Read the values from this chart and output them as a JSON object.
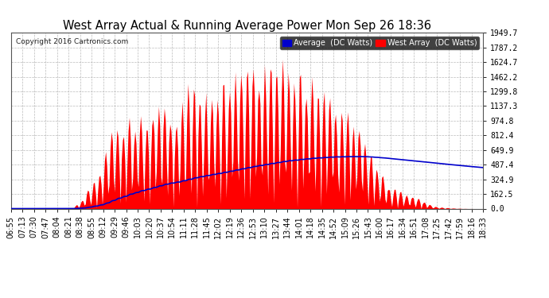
{
  "title": "West Array Actual & Running Average Power Mon Sep 26 18:36",
  "copyright": "Copyright 2016 Cartronics.com",
  "legend_avg": "Average  (DC Watts)",
  "legend_west": "West Array  (DC Watts)",
  "ylabel_values": [
    0.0,
    162.5,
    324.9,
    487.4,
    649.9,
    812.4,
    974.8,
    1137.3,
    1299.8,
    1462.2,
    1624.7,
    1787.2,
    1949.7
  ],
  "ymax": 1949.7,
  "background_color": "#ffffff",
  "plot_bg_color": "#ffffff",
  "grid_color": "#aaaaaa",
  "west_array_color": "#ff0000",
  "average_color": "#0000cc",
  "title_color": "#000000",
  "tick_label_color": "#000000",
  "x_tick_labels": [
    "06:55",
    "07:13",
    "07:30",
    "07:47",
    "08:04",
    "08:21",
    "08:38",
    "08:55",
    "09:12",
    "09:29",
    "09:46",
    "10:03",
    "10:20",
    "10:37",
    "10:54",
    "11:11",
    "11:28",
    "11:45",
    "12:02",
    "12:19",
    "12:36",
    "12:53",
    "13:10",
    "13:27",
    "13:44",
    "14:01",
    "14:18",
    "14:35",
    "14:52",
    "15:09",
    "15:26",
    "15:43",
    "16:00",
    "16:17",
    "16:34",
    "16:51",
    "17:08",
    "17:25",
    "17:42",
    "17:59",
    "18:16",
    "18:33"
  ],
  "num_points": 420
}
